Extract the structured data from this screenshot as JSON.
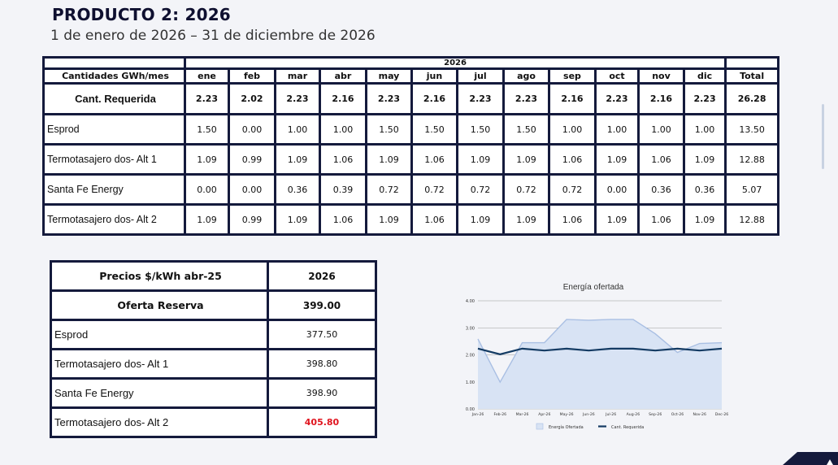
{
  "header": {
    "title": "PRODUCTO 2: 2026",
    "subtitle": "1 de enero de 2026  – 31 de diciembre de 2026"
  },
  "main_table": {
    "year": "2026",
    "label_header": "Cantidades GWh/mes",
    "months": [
      "ene",
      "feb",
      "mar",
      "abr",
      "may",
      "jun",
      "jul",
      "ago",
      "sep",
      "oct",
      "nov",
      "dic"
    ],
    "total_header": "Total",
    "rows": [
      {
        "label": "Cant. Requerida",
        "values": [
          "2.23",
          "2.02",
          "2.23",
          "2.16",
          "2.23",
          "2.16",
          "2.23",
          "2.23",
          "2.16",
          "2.23",
          "2.16",
          "2.23"
        ],
        "total": "26.28"
      },
      {
        "label": "Esprod",
        "values": [
          "1.50",
          "0.00",
          "1.00",
          "1.00",
          "1.50",
          "1.50",
          "1.50",
          "1.50",
          "1.00",
          "1.00",
          "1.00",
          "1.00"
        ],
        "total": "13.50"
      },
      {
        "label": "Termotasajero dos- Alt 1",
        "values": [
          "1.09",
          "0.99",
          "1.09",
          "1.06",
          "1.09",
          "1.06",
          "1.09",
          "1.09",
          "1.06",
          "1.09",
          "1.06",
          "1.09"
        ],
        "total": "12.88"
      },
      {
        "label": "Santa Fe Energy",
        "values": [
          "0.00",
          "0.00",
          "0.36",
          "0.39",
          "0.72",
          "0.72",
          "0.72",
          "0.72",
          "0.72",
          "0.00",
          "0.36",
          "0.36"
        ],
        "total": "5.07"
      },
      {
        "label": "Termotasajero dos- Alt  2",
        "values": [
          "1.09",
          "0.99",
          "1.09",
          "1.06",
          "1.09",
          "1.06",
          "1.09",
          "1.09",
          "1.06",
          "1.09",
          "1.06",
          "1.09"
        ],
        "total": "12.88"
      }
    ]
  },
  "price_table": {
    "header_label": "Precios $/kWh abr-25",
    "header_year": "2026",
    "rows": [
      {
        "label": "Oferta Reserva",
        "value": "399.00",
        "bold": true
      },
      {
        "label": "Esprod",
        "value": "377.50"
      },
      {
        "label": "Termotasajero dos- Alt 1",
        "value": "398.80"
      },
      {
        "label": "Santa Fe Energy",
        "value": "398.90"
      },
      {
        "label": "Termotasajero dos- Alt  2",
        "value": "405.80",
        "highlight": true
      }
    ],
    "highlight_color": "#e0141e"
  },
  "chart_data": {
    "type": "area",
    "title": "Energía ofertada",
    "categories": [
      "Jan-26",
      "Feb-26",
      "Mar-26",
      "Apr-26",
      "May-26",
      "Jun-26",
      "Jul-26",
      "Aug-26",
      "Sep-26",
      "Oct-26",
      "Nov-26",
      "Dec-26"
    ],
    "ylim": [
      0,
      4
    ],
    "yticks": [
      "0.00",
      "1.00",
      "2.00",
      "3.00",
      "4.00"
    ],
    "grid": true,
    "legend": "bottom",
    "series": [
      {
        "name": "Energía Ofertada",
        "kind": "area",
        "color": "#a9bfe3",
        "fill": "#d8e3f4",
        "values": [
          2.59,
          0.99,
          2.45,
          2.45,
          3.31,
          3.28,
          3.31,
          3.31,
          2.78,
          2.09,
          2.42,
          2.45
        ]
      },
      {
        "name": "Cant. Requerida",
        "kind": "line",
        "color": "#143b63",
        "values": [
          2.23,
          2.02,
          2.23,
          2.16,
          2.23,
          2.16,
          2.23,
          2.23,
          2.16,
          2.23,
          2.16,
          2.23
        ]
      }
    ]
  }
}
